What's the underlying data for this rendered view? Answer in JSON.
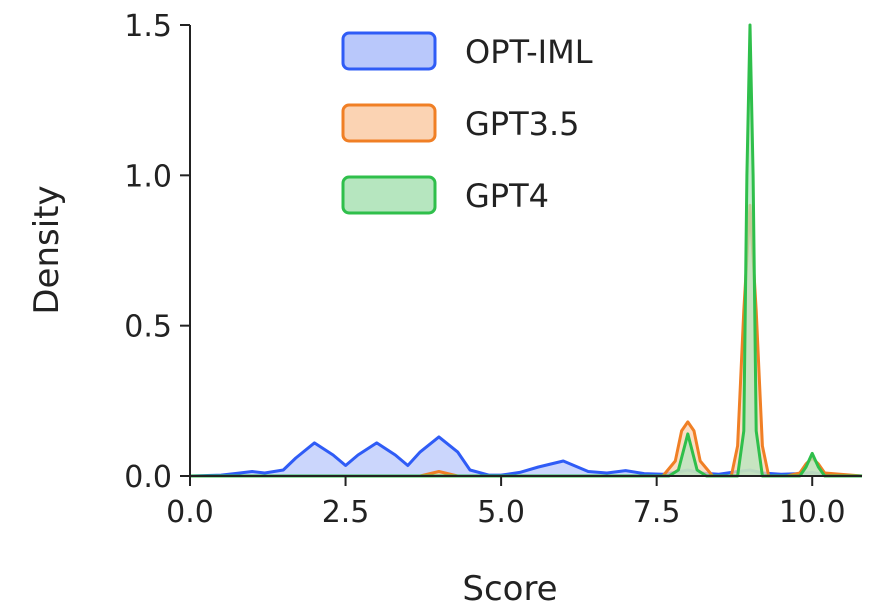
{
  "chart_data": {
    "type": "area",
    "subtype": "kde-density",
    "title": "",
    "xlabel": "Score",
    "ylabel": "Density",
    "xlim": [
      0,
      10.8
    ],
    "ylim": [
      0,
      1.5
    ],
    "xticks": [
      "0.0",
      "2.5",
      "5.0",
      "7.5",
      "10.0"
    ],
    "yticks": [
      "0.0",
      "0.5",
      "1.0",
      "1.5"
    ],
    "grid": false,
    "legend_position": "top-center",
    "series": [
      {
        "name": "OPT-IML",
        "color": "#2f5cf6",
        "fill": "#b9c8fb",
        "x": [
          0.0,
          0.5,
          0.8,
          1.0,
          1.2,
          1.5,
          1.7,
          2.0,
          2.3,
          2.5,
          2.7,
          3.0,
          3.3,
          3.5,
          3.7,
          4.0,
          4.3,
          4.5,
          4.8,
          5.0,
          5.3,
          5.6,
          6.0,
          6.4,
          6.7,
          7.0,
          7.3,
          7.6,
          7.8,
          8.0,
          8.2,
          8.5,
          8.8,
          9.0,
          9.2,
          9.5,
          9.8,
          10.0,
          10.2,
          10.8
        ],
        "y": [
          0.0,
          0.003,
          0.01,
          0.015,
          0.01,
          0.02,
          0.06,
          0.11,
          0.07,
          0.035,
          0.07,
          0.11,
          0.07,
          0.035,
          0.08,
          0.13,
          0.08,
          0.02,
          0.003,
          0.003,
          0.012,
          0.03,
          0.05,
          0.015,
          0.01,
          0.018,
          0.008,
          0.006,
          0.012,
          0.02,
          0.01,
          0.006,
          0.015,
          0.02,
          0.01,
          0.006,
          0.008,
          0.012,
          0.004,
          0.0
        ]
      },
      {
        "name": "GPT3.5",
        "color": "#f07f25",
        "fill": "#fbd3b3",
        "x": [
          0.0,
          3.7,
          4.0,
          4.3,
          7.6,
          7.8,
          7.9,
          8.0,
          8.1,
          8.2,
          8.4,
          8.7,
          8.8,
          8.9,
          9.0,
          9.1,
          9.2,
          9.3,
          9.6,
          9.8,
          9.9,
          10.0,
          10.1,
          10.2,
          10.8
        ],
        "y": [
          0.0,
          0.0,
          0.015,
          0.0,
          0.0,
          0.05,
          0.15,
          0.18,
          0.15,
          0.05,
          0.0,
          0.0,
          0.1,
          0.55,
          0.9,
          0.55,
          0.1,
          0.0,
          0.0,
          0.01,
          0.04,
          0.06,
          0.04,
          0.01,
          0.0
        ]
      },
      {
        "name": "GPT4",
        "color": "#2fbf4b",
        "fill": "#b6e6bf",
        "x": [
          0.0,
          7.7,
          7.85,
          7.95,
          8.0,
          8.05,
          8.15,
          8.3,
          8.8,
          8.9,
          8.95,
          9.0,
          9.05,
          9.1,
          9.2,
          9.8,
          9.9,
          10.0,
          10.1,
          10.2,
          10.8
        ],
        "y": [
          0.0,
          0.0,
          0.02,
          0.1,
          0.14,
          0.1,
          0.02,
          0.0,
          0.0,
          0.15,
          1.0,
          1.5,
          1.0,
          0.15,
          0.0,
          0.0,
          0.03,
          0.075,
          0.03,
          0.0,
          0.0
        ]
      }
    ]
  }
}
